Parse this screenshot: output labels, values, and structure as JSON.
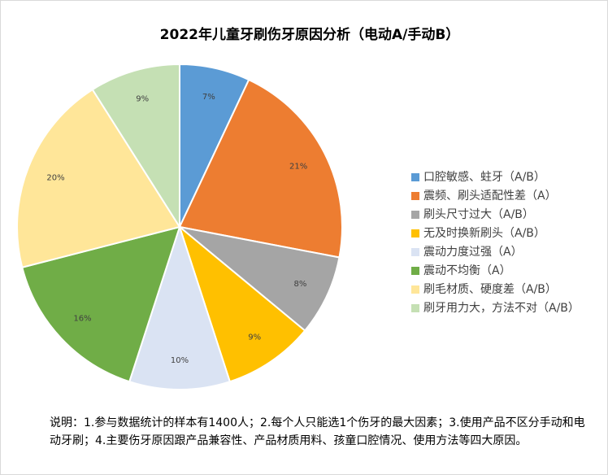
{
  "chart_data": {
    "type": "pie",
    "title": "2022年儿童牙刷伤牙原因分析（电动A/手动B）",
    "categories": [
      "口腔敏感、蛀牙（A/B）",
      "震频、刷头适配性差（A）",
      "刷头尺寸过大（A/B）",
      "无及时换新刷头（A/B）",
      "震动力度过强（A）",
      "震动不均衡（A）",
      "刷毛材质、硬度差（A/B）",
      "刷牙用力大，方法不对（A/B）"
    ],
    "values": [
      7,
      21,
      8,
      9,
      10,
      16,
      20,
      9
    ],
    "value_labels": [
      "7%",
      "21%",
      "8%",
      "9%",
      "10%",
      "16%",
      "20%",
      "9%"
    ],
    "colors": [
      "#5b9bd5",
      "#ed7d31",
      "#a5a5a5",
      "#ffc000",
      "#dae3f3",
      "#70ad47",
      "#ffe699",
      "#c5e0b4"
    ],
    "legend": "right",
    "note": "说明：1.参与数据统计的样本有1400人；2.每个人只能选1个伤牙的最大因素；3.使用产品不区分手动和电动牙刷；4.主要伤牙原因跟产品兼容性、产品材质用料、孩童口腔情况、使用方法等四大原因。"
  }
}
